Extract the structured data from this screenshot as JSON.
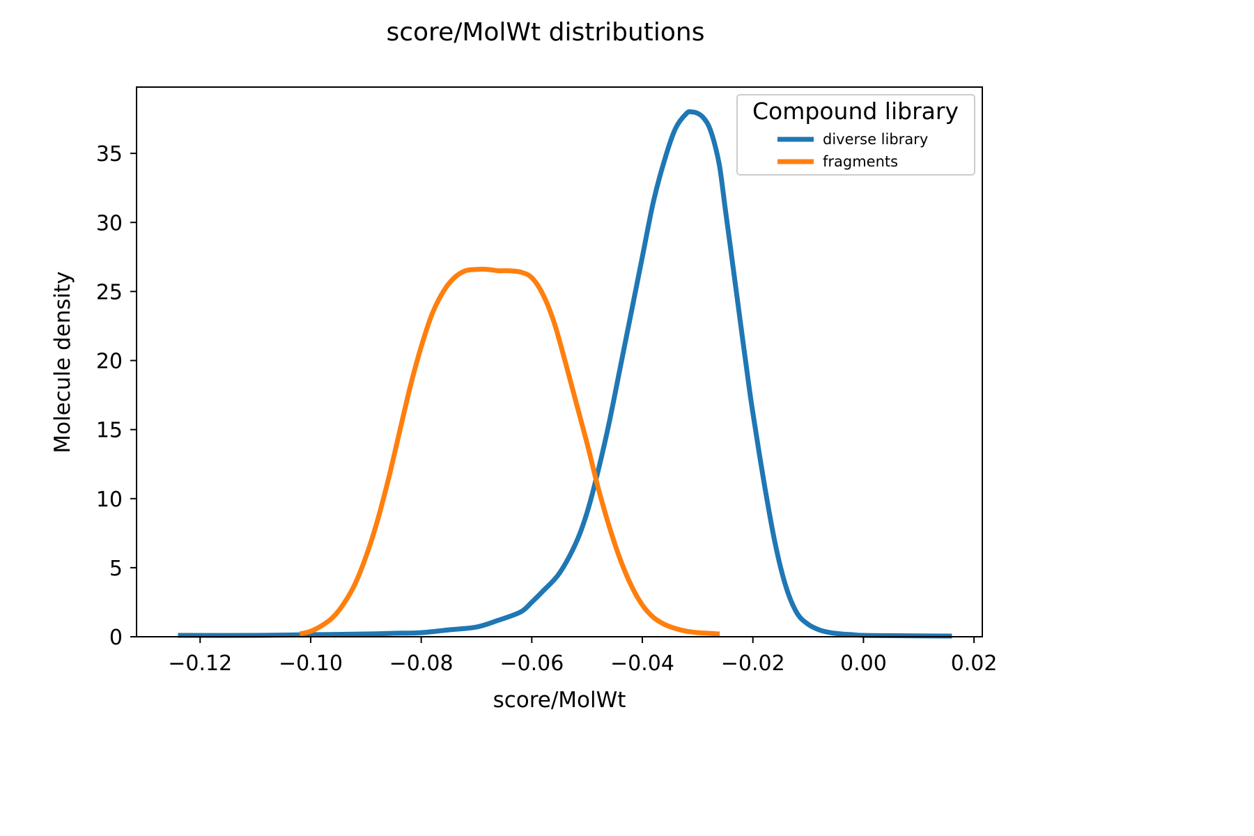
{
  "chart_data": {
    "type": "line",
    "title": "score/MolWt distributions",
    "xlabel": "score/MolWt",
    "ylabel": "Molecule density",
    "xlim": [
      -0.1315,
      0.0215
    ],
    "ylim": [
      0,
      39.8
    ],
    "x_ticks": [
      -0.12,
      -0.1,
      -0.08,
      -0.06,
      -0.04,
      -0.02,
      0.0,
      0.02
    ],
    "x_tick_labels": [
      "−0.12",
      "−0.10",
      "−0.08",
      "−0.06",
      "−0.04",
      "−0.02",
      "0.00",
      "0.02"
    ],
    "y_ticks": [
      0,
      5,
      10,
      15,
      20,
      25,
      30,
      35
    ],
    "y_tick_labels": [
      "0",
      "5",
      "10",
      "15",
      "20",
      "25",
      "30",
      "35"
    ],
    "grid": false,
    "legend": {
      "title": "Compound library",
      "placement": "top-right"
    },
    "series": [
      {
        "name": "diverse library",
        "color": "#1f77b4",
        "x": [
          -0.124,
          -0.11,
          -0.1,
          -0.09,
          -0.085,
          -0.08,
          -0.075,
          -0.07,
          -0.066,
          -0.062,
          -0.06,
          -0.058,
          -0.055,
          -0.052,
          -0.05,
          -0.048,
          -0.046,
          -0.044,
          -0.042,
          -0.04,
          -0.038,
          -0.036,
          -0.034,
          -0.032,
          -0.031,
          -0.03,
          -0.029,
          -0.028,
          -0.027,
          -0.026,
          -0.025,
          -0.024,
          -0.023,
          -0.022,
          -0.021,
          -0.02,
          -0.018,
          -0.016,
          -0.014,
          -0.012,
          -0.01,
          -0.008,
          -0.006,
          -0.004,
          -0.002,
          0.0,
          0.004,
          0.01,
          0.016
        ],
        "y": [
          0.1,
          0.1,
          0.15,
          0.2,
          0.25,
          0.3,
          0.5,
          0.7,
          1.2,
          1.8,
          2.5,
          3.3,
          4.6,
          6.8,
          9.0,
          12.0,
          15.5,
          19.5,
          23.5,
          27.5,
          31.5,
          34.5,
          36.8,
          37.9,
          38.0,
          37.9,
          37.6,
          37.0,
          35.8,
          34.0,
          31.0,
          28.0,
          25.0,
          22.0,
          19.0,
          16.2,
          11.2,
          6.8,
          3.6,
          1.7,
          0.9,
          0.5,
          0.3,
          0.2,
          0.15,
          0.1,
          0.08,
          0.06,
          0.05
        ]
      },
      {
        "name": "fragments",
        "color": "#ff7f0e",
        "x": [
          -0.102,
          -0.1,
          -0.098,
          -0.096,
          -0.094,
          -0.092,
          -0.09,
          -0.088,
          -0.086,
          -0.084,
          -0.082,
          -0.08,
          -0.078,
          -0.076,
          -0.074,
          -0.072,
          -0.07,
          -0.068,
          -0.066,
          -0.064,
          -0.062,
          -0.06,
          -0.058,
          -0.056,
          -0.054,
          -0.052,
          -0.05,
          -0.048,
          -0.046,
          -0.044,
          -0.042,
          -0.04,
          -0.038,
          -0.036,
          -0.034,
          -0.032,
          -0.03,
          -0.028,
          -0.026
        ],
        "y": [
          0.2,
          0.4,
          0.8,
          1.4,
          2.4,
          3.8,
          5.8,
          8.3,
          11.3,
          14.7,
          18.1,
          21.0,
          23.4,
          25.0,
          26.0,
          26.5,
          26.6,
          26.6,
          26.5,
          26.5,
          26.4,
          26.0,
          24.8,
          22.8,
          20.0,
          17.0,
          14.0,
          10.8,
          8.0,
          5.6,
          3.7,
          2.3,
          1.4,
          0.9,
          0.6,
          0.4,
          0.3,
          0.25,
          0.2
        ]
      }
    ]
  }
}
